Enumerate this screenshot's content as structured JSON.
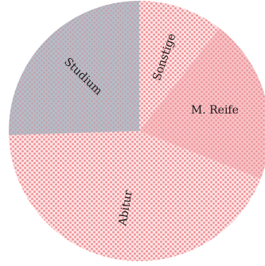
{
  "chart_data": {
    "type": "pie",
    "slices": [
      {
        "label": "Sonstige",
        "value": 10.5,
        "color": "#f29ca0",
        "fill_style": "light-dots"
      },
      {
        "label": "M. Reife",
        "value": 20.5,
        "color": "#f29ca0",
        "fill_style": "solid-dots"
      },
      {
        "label": "Abitur",
        "value": 43.5,
        "color": "#f29ca0",
        "fill_style": "light-dots"
      },
      {
        "label": "Studium",
        "value": 25.5,
        "color": "#9aa8b8",
        "fill_style": "solid-dots"
      }
    ],
    "start_angle_deg": 0,
    "direction": "clockwise",
    "legend": "none"
  }
}
